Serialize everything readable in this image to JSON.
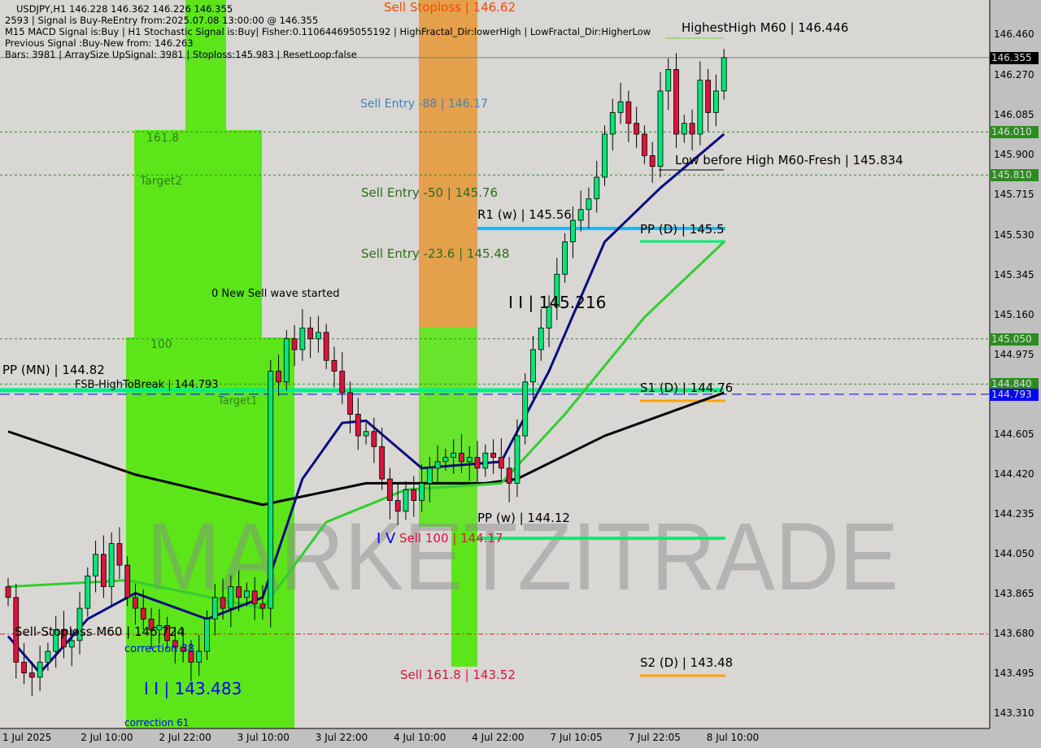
{
  "header": {
    "line1": "USDJPY,H1  146.228 146.362 146.226 146.355",
    "line2": "2593 | Signal is Buy-ReEntry from:2025.07.08 13:00:00 @ 146.355",
    "line3": "M15 MACD Signal is:Buy | H1 Stochastic Signal is:Buy| Fisher:0.110644695055192 | HighFractal_Dir:lowerHigh | LowFractal_Dir:HigherLow",
    "line4": "Previous Signal :Buy-New from: 146.263",
    "line5": "Bars: 3981 | ArraySize UpSignal: 3981 | Stoploss:145.983 | ResetLoop:false"
  },
  "annotations": {
    "sell_stoploss": "Sell Stoploss | 146.62",
    "sell_entry_88": "Sell Entry -88 | 146.17",
    "sell_entry_50": "Sell Entry -50 | 145.76",
    "sell_entry_23": "Sell Entry -23.6 | 145.48",
    "r1_w": "R1 (w) | 145.56",
    "pp_d": "PP (D) | 145.5",
    "level_145216": "I I | 145.216",
    "new_sell_wave": "0 New Sell wave started",
    "fib_1618": "161.8",
    "target2": "Target2",
    "fib_100": "100",
    "pp_mn": "PP (MN) | 144.82",
    "fsb": "FSB-HighToBreak | 144.793",
    "target1": "Target1",
    "s1_d": "S1 (D) | 144.76",
    "pp_w": "PP (w) | 144.12",
    "sell_100": "Sell 100 | 144.17",
    "iv": "I V",
    "sell_stoploss_m60": "Sell-Stoploss M60 | 146.724",
    "correction38": "correction 38",
    "level_143483": "I I | 143.483",
    "correction61": "correction 61",
    "sell_1618": "Sell 161.8 | 143.52",
    "s2_d": "S2 (D) | 143.48",
    "highest_high": "HighestHigh   M60 | 146.446",
    "low_before_high": "Low before High   M60-Fresh | 145.834",
    "watermark": "MARKETZITRADE"
  },
  "colors": {
    "bull": "#00e676",
    "bear": "#dc143c",
    "zone_green": "#5ce619",
    "zone_orange": "#e69a3c",
    "pivot_cyan": "#00bfff",
    "pivot_green": "#00ee76",
    "pivot_orange": "#ffa500",
    "ma_fast": "#0a0a80",
    "ma_mid": "#32cd32",
    "ma_slow": "#000000"
  },
  "chart_data": {
    "type": "candlestick",
    "symbol": "USDJPY",
    "timeframe": "H1",
    "ylim": [
      143.25,
      146.62
    ],
    "y_ticks": [
      "146.460",
      "146.270",
      "146.085",
      "145.900",
      "145.715",
      "145.530",
      "145.345",
      "145.160",
      "144.975",
      "144.605",
      "144.420",
      "144.235",
      "144.050",
      "143.865",
      "143.680",
      "143.495",
      "143.310"
    ],
    "price_tags": [
      {
        "value": "146.355",
        "bg": "#000000"
      },
      {
        "value": "146.010",
        "bg": "#2e8b22"
      },
      {
        "value": "145.810",
        "bg": "#2e8b22"
      },
      {
        "value": "145.050",
        "bg": "#2e8b22"
      },
      {
        "value": "144.840",
        "bg": "#2e8b22"
      },
      {
        "value": "144.793",
        "bg": "#0000ff"
      }
    ],
    "x_ticks": [
      "1 Jul 2025",
      "2 Jul 10:00",
      "2 Jul 22:00",
      "3 Jul 10:00",
      "3 Jul 22:00",
      "4 Jul 10:00",
      "4 Jul 22:00",
      "7 Jul 10:05",
      "7 Jul 22:05",
      "8 Jul 10:00"
    ],
    "closes": [
      143.85,
      143.55,
      143.5,
      143.48,
      143.55,
      143.6,
      143.7,
      143.62,
      143.65,
      143.8,
      143.95,
      144.05,
      143.9,
      144.1,
      144.0,
      143.85,
      143.8,
      143.75,
      143.7,
      143.72,
      143.65,
      143.62,
      143.6,
      143.55,
      143.6,
      143.75,
      143.85,
      143.8,
      143.9,
      143.85,
      143.88,
      143.82,
      143.8,
      144.9,
      144.85,
      145.05,
      145.0,
      145.1,
      145.05,
      145.08,
      144.95,
      144.9,
      144.8,
      144.7,
      144.6,
      144.62,
      144.55,
      144.4,
      144.3,
      144.25,
      144.35,
      144.3,
      144.38,
      144.45,
      144.48,
      144.5,
      144.52,
      144.48,
      144.5,
      144.45,
      144.52,
      144.5,
      144.45,
      144.38,
      144.6,
      144.85,
      145.0,
      145.1,
      145.2,
      145.35,
      145.5,
      145.6,
      145.65,
      145.7,
      145.8,
      146.0,
      146.1,
      146.15,
      146.05,
      146.0,
      145.9,
      145.85,
      146.2,
      146.3,
      146.0,
      146.05,
      146.0,
      146.25,
      146.1,
      146.2,
      146.355
    ],
    "ma_fast": [
      [
        0,
        143.67
      ],
      [
        4,
        143.5
      ],
      [
        10,
        143.75
      ],
      [
        16,
        143.87
      ],
      [
        25,
        143.75
      ],
      [
        32,
        143.85
      ],
      [
        37,
        144.4
      ],
      [
        42,
        144.66
      ],
      [
        45,
        144.67
      ],
      [
        52,
        144.45
      ],
      [
        62,
        144.48
      ],
      [
        68,
        144.9
      ],
      [
        75,
        145.5
      ],
      [
        82,
        145.75
      ],
      [
        90,
        146.0
      ]
    ],
    "ma_mid": [
      [
        0,
        143.9
      ],
      [
        15,
        143.93
      ],
      [
        32,
        143.8
      ],
      [
        40,
        144.2
      ],
      [
        50,
        144.35
      ],
      [
        62,
        144.38
      ],
      [
        70,
        144.7
      ],
      [
        80,
        145.15
      ],
      [
        90,
        145.5
      ]
    ],
    "ma_slow": [
      [
        0,
        144.62
      ],
      [
        16,
        144.42
      ],
      [
        32,
        144.28
      ],
      [
        45,
        144.38
      ],
      [
        60,
        144.38
      ],
      [
        64,
        144.4
      ],
      [
        75,
        144.6
      ],
      [
        90,
        144.8
      ]
    ],
    "levels": [
      {
        "price": 146.01,
        "style": "green-dotted"
      },
      {
        "price": 145.81,
        "style": "green-dotted"
      },
      {
        "price": 145.05,
        "style": "green-dotted"
      },
      {
        "price": 144.84,
        "style": "green-dotted"
      },
      {
        "price": 143.68,
        "style": "red-dashdot"
      },
      {
        "price": 144.793,
        "style": "blue-dashed"
      },
      {
        "price": 146.355,
        "style": "grey-solid"
      }
    ]
  }
}
